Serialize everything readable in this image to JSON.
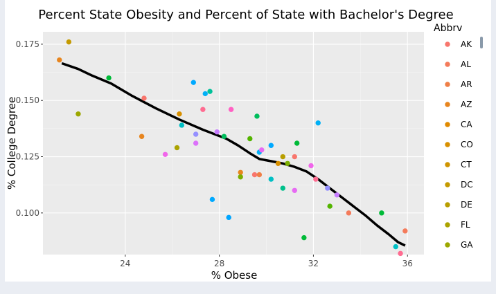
{
  "chart_data": {
    "type": "scatter",
    "title": "Percent State Obesity and Percent of State with Bachelor's Degree",
    "xlabel": "% Obese",
    "ylabel": "% College Degree",
    "xlim": [
      20.5,
      36.7
    ],
    "ylim": [
      0.0815,
      0.1805
    ],
    "xticks": [
      24,
      28,
      32,
      36
    ],
    "xtick_labels": [
      "24",
      "28",
      "32",
      "36"
    ],
    "yticks": [
      0.1,
      0.125,
      0.15,
      0.175
    ],
    "ytick_labels": [
      "0.100",
      "0.125",
      "0.150",
      "0.175"
    ],
    "grid": true,
    "legend_title": "Abbrv",
    "legend_position": "right",
    "legend": [
      {
        "label": "AK",
        "color": "#F8766D"
      },
      {
        "label": "AL",
        "color": "#F47B5B"
      },
      {
        "label": "AR",
        "color": "#EF7F47"
      },
      {
        "label": "AZ",
        "color": "#E7851E"
      },
      {
        "label": "CA",
        "color": "#E08A00"
      },
      {
        "label": "CO",
        "color": "#D89000"
      },
      {
        "label": "CT",
        "color": "#CF9400"
      },
      {
        "label": "DC",
        "color": "#C49A00"
      },
      {
        "label": "DE",
        "color": "#B89E00"
      },
      {
        "label": "FL",
        "color": "#ABA300"
      },
      {
        "label": "GA",
        "color": "#9CA700"
      }
    ],
    "points": [
      {
        "x": 21.2,
        "y": 0.168,
        "color": "#E7851E"
      },
      {
        "x": 21.6,
        "y": 0.176,
        "color": "#C49A00"
      },
      {
        "x": 22.0,
        "y": 0.144,
        "color": "#9CA700"
      },
      {
        "x": 23.3,
        "y": 0.16,
        "color": "#00BA38"
      },
      {
        "x": 24.7,
        "y": 0.134,
        "color": "#E7851E"
      },
      {
        "x": 24.8,
        "y": 0.151,
        "color": "#F8766D"
      },
      {
        "x": 25.7,
        "y": 0.126,
        "color": "#F066EA"
      },
      {
        "x": 26.2,
        "y": 0.129,
        "color": "#ABA300"
      },
      {
        "x": 26.3,
        "y": 0.144,
        "color": "#D89000"
      },
      {
        "x": 26.4,
        "y": 0.139,
        "color": "#00BFC4"
      },
      {
        "x": 26.9,
        "y": 0.158,
        "color": "#00A9FF"
      },
      {
        "x": 27.0,
        "y": 0.135,
        "color": "#9590FF"
      },
      {
        "x": 27.0,
        "y": 0.131,
        "color": "#DC71FA"
      },
      {
        "x": 27.3,
        "y": 0.146,
        "color": "#FF6C91"
      },
      {
        "x": 27.4,
        "y": 0.153,
        "color": "#00B0F6"
      },
      {
        "x": 27.6,
        "y": 0.154,
        "color": "#00C19A"
      },
      {
        "x": 27.7,
        "y": 0.106,
        "color": "#00A9FF"
      },
      {
        "x": 27.9,
        "y": 0.136,
        "color": "#C77CFF"
      },
      {
        "x": 28.2,
        "y": 0.134,
        "color": "#00BD5C"
      },
      {
        "x": 28.4,
        "y": 0.098,
        "color": "#00A5FF"
      },
      {
        "x": 28.5,
        "y": 0.146,
        "color": "#FF61C3"
      },
      {
        "x": 28.9,
        "y": 0.118,
        "color": "#E7851E"
      },
      {
        "x": 28.9,
        "y": 0.116,
        "color": "#7CAE00"
      },
      {
        "x": 29.3,
        "y": 0.133,
        "color": "#53B400"
      },
      {
        "x": 29.5,
        "y": 0.117,
        "color": "#F8766D"
      },
      {
        "x": 29.6,
        "y": 0.143,
        "color": "#00BD5C"
      },
      {
        "x": 29.7,
        "y": 0.117,
        "color": "#EF7F47"
      },
      {
        "x": 29.7,
        "y": 0.127,
        "color": "#00B0F6"
      },
      {
        "x": 29.8,
        "y": 0.128,
        "color": "#E76BF3"
      },
      {
        "x": 30.2,
        "y": 0.13,
        "color": "#00A9FF"
      },
      {
        "x": 30.2,
        "y": 0.115,
        "color": "#00BFC4"
      },
      {
        "x": 30.5,
        "y": 0.122,
        "color": "#D89000"
      },
      {
        "x": 30.7,
        "y": 0.125,
        "color": "#B89E00"
      },
      {
        "x": 30.7,
        "y": 0.111,
        "color": "#00C08B"
      },
      {
        "x": 30.9,
        "y": 0.122,
        "color": "#7CAE00"
      },
      {
        "x": 31.2,
        "y": 0.125,
        "color": "#F8766D"
      },
      {
        "x": 31.2,
        "y": 0.11,
        "color": "#E76BF3"
      },
      {
        "x": 31.3,
        "y": 0.131,
        "color": "#00BA38"
      },
      {
        "x": 31.6,
        "y": 0.089,
        "color": "#00BA38"
      },
      {
        "x": 31.9,
        "y": 0.121,
        "color": "#F066EA"
      },
      {
        "x": 32.1,
        "y": 0.115,
        "color": "#FF6C91"
      },
      {
        "x": 32.2,
        "y": 0.14,
        "color": "#00B0F6"
      },
      {
        "x": 32.6,
        "y": 0.111,
        "color": "#9590FF"
      },
      {
        "x": 32.7,
        "y": 0.103,
        "color": "#53B400"
      },
      {
        "x": 33.0,
        "y": 0.108,
        "color": "#C77CFF"
      },
      {
        "x": 33.5,
        "y": 0.1,
        "color": "#F47B5B"
      },
      {
        "x": 34.9,
        "y": 0.1,
        "color": "#00BA38"
      },
      {
        "x": 35.5,
        "y": 0.085,
        "color": "#00BFC4"
      },
      {
        "x": 35.7,
        "y": 0.082,
        "color": "#FF6C91"
      },
      {
        "x": 35.9,
        "y": 0.092,
        "color": "#F47B5B"
      }
    ],
    "trend_line": {
      "color": "#000000",
      "x": [
        21.3,
        22.0,
        22.6,
        23.4,
        24.3,
        25.3,
        26.3,
        27.3,
        28.3,
        28.8,
        29.3,
        29.7,
        30.2,
        30.7,
        31.2,
        31.7,
        32.2,
        32.7,
        33.2,
        33.7,
        34.2,
        34.7,
        35.2,
        35.6,
        35.9
      ],
      "y": [
        0.1665,
        0.164,
        0.161,
        0.1575,
        0.152,
        0.1465,
        0.1415,
        0.137,
        0.133,
        0.13,
        0.1265,
        0.124,
        0.123,
        0.122,
        0.1205,
        0.1185,
        0.115,
        0.111,
        0.107,
        0.103,
        0.099,
        0.0945,
        0.0905,
        0.087,
        0.0855
      ]
    }
  }
}
